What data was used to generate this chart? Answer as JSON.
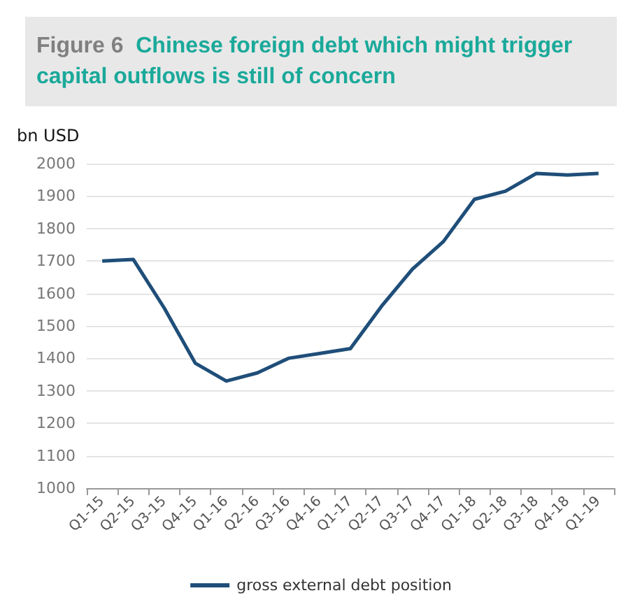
{
  "chart_data": {
    "type": "line",
    "title": "Figure 6  Chinese foreign debt which might trigger capital outflows is still of concern",
    "ylabel": "bn USD",
    "categories": [
      "Q1-15",
      "Q2-15",
      "Q3-15",
      "Q4-15",
      "Q1-16",
      "Q2-16",
      "Q3-16",
      "Q4-16",
      "Q1-17",
      "Q2-17",
      "Q3-17",
      "Q4-17",
      "Q1-18",
      "Q2-18",
      "Q3-18",
      "Q4-18",
      "Q1-19"
    ],
    "series": [
      {
        "name": "gross external debt position",
        "color": "#1f4e79",
        "values": [
          1700,
          1705,
          1555,
          1385,
          1330,
          1355,
          1400,
          1415,
          1430,
          1560,
          1675,
          1760,
          1890,
          1915,
          1970,
          1965,
          1970
        ]
      }
    ],
    "ylim": [
      1000,
      2000
    ],
    "yticks": [
      1000,
      1100,
      1200,
      1300,
      1400,
      1500,
      1600,
      1700,
      1800,
      1900,
      2000
    ],
    "grid": "y",
    "legend": "bottom",
    "marker": "none",
    "line_style": "solid"
  }
}
